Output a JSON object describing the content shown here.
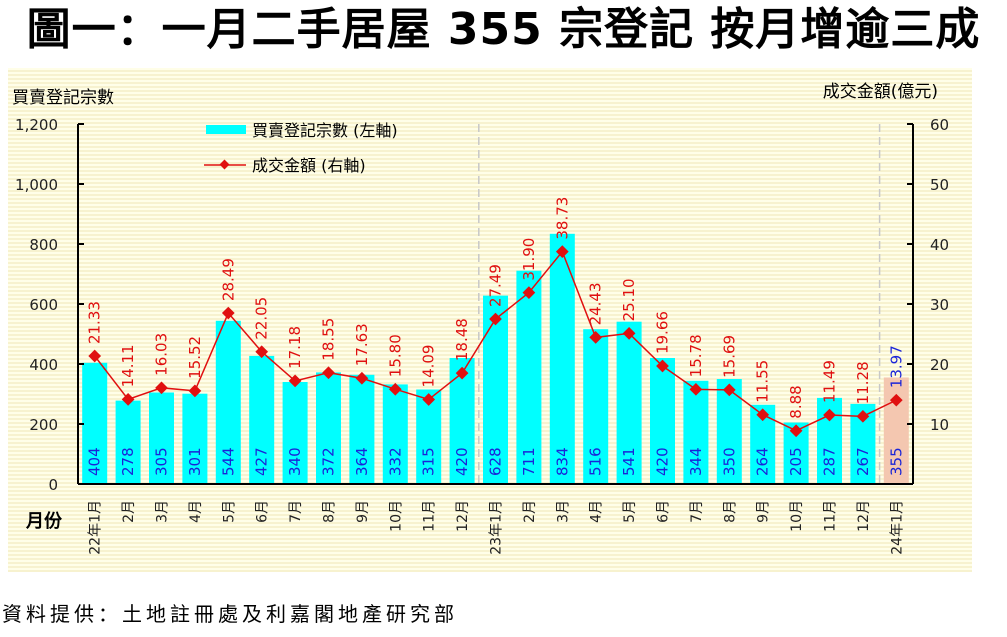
{
  "title": "圖一：一月二手居屋 355 宗登記  按月增逾三成",
  "footer": "資料提供：土地註冊處及利嘉閣地產研究部",
  "colors": {
    "bar": "#00ffff",
    "bar_highlight": "#f4c7b0",
    "line": "#e01010",
    "bar_label": "#1a24d8",
    "line_label": "#e01010",
    "highlight_line_label": "#1a24d8",
    "separator": "#c8c8c8"
  },
  "chart_data": {
    "type": "bar+line",
    "title": "圖一：一月二手居屋 355 宗登記  按月增逾三成",
    "xlabel": "月份",
    "ylabel_left": "買賣登記宗數",
    "ylabel_right": "成交金額(億元)",
    "ylim_left": [
      0,
      1200
    ],
    "ylim_right": [
      0,
      60
    ],
    "yticks_left": [
      "0",
      "200",
      "400",
      "600",
      "800",
      "1,000",
      "1,200"
    ],
    "yticks_right": [
      "10",
      "20",
      "30",
      "40",
      "50",
      "60"
    ],
    "legend_position": "top-left",
    "categories": [
      "22年1月",
      "2月",
      "3月",
      "4月",
      "5月",
      "6月",
      "7月",
      "8月",
      "9月",
      "10月",
      "11月",
      "12月",
      "23年1月",
      "2月",
      "3月",
      "4月",
      "5月",
      "6月",
      "7月",
      "8月",
      "9月",
      "10月",
      "11月",
      "12月",
      "24年1月"
    ],
    "series": [
      {
        "name": "買賣登記宗數 (左軸)",
        "type": "bar",
        "axis": "left",
        "values": [
          404,
          278,
          305,
          301,
          544,
          427,
          340,
          372,
          364,
          332,
          315,
          420,
          628,
          711,
          834,
          516,
          541,
          420,
          344,
          350,
          264,
          205,
          287,
          267,
          355
        ],
        "highlight_index": 24
      },
      {
        "name": "成交金額 (右軸)",
        "type": "line",
        "axis": "right",
        "values": [
          21.33,
          14.11,
          16.03,
          15.52,
          28.49,
          22.05,
          17.18,
          18.55,
          17.63,
          15.8,
          14.09,
          18.48,
          27.49,
          31.9,
          38.73,
          24.43,
          25.1,
          19.66,
          15.78,
          15.69,
          11.55,
          8.88,
          11.49,
          11.28,
          13.97
        ],
        "labels": [
          "21.33",
          "14.11",
          "16.03",
          "15.52",
          "28.49",
          "22.05",
          "17.18",
          "18.55",
          "17.63",
          "15.80",
          "14.09",
          "18.48",
          "27.49",
          "31.90",
          "38.73",
          "24.43",
          "25.10",
          "19.66",
          "15.78",
          "15.69",
          "11.55",
          "8.88",
          "11.49",
          "11.28",
          "13.97"
        ]
      }
    ],
    "year_separators_after_index": [
      11,
      23
    ]
  }
}
